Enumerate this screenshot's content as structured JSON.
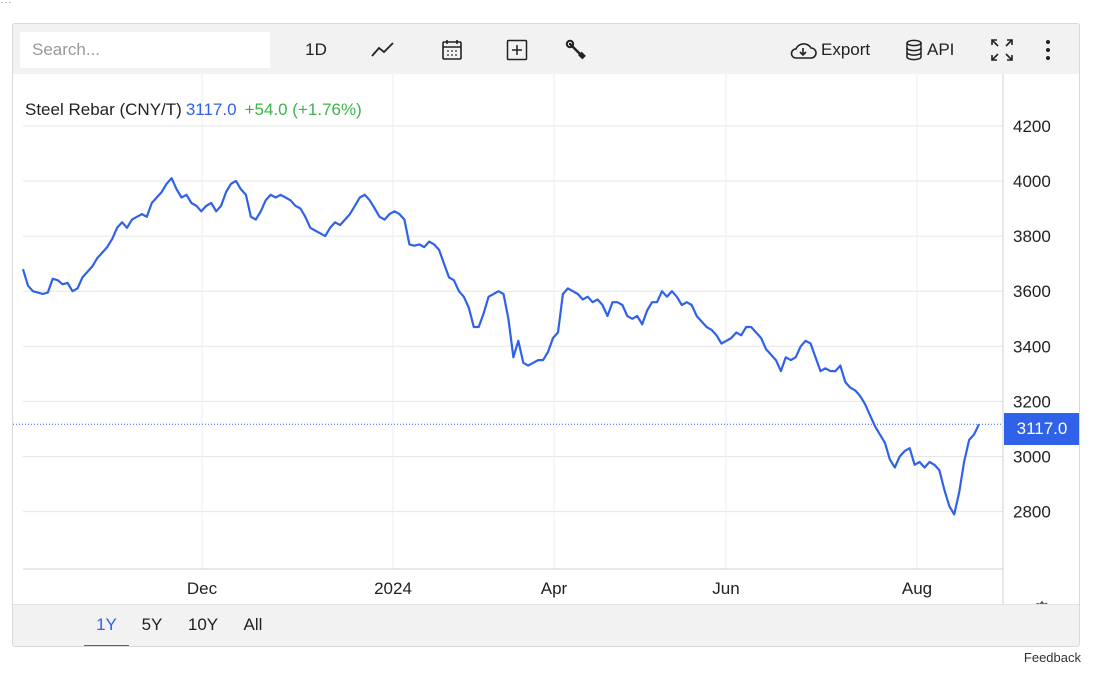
{
  "page_header_fragment": "...",
  "toolbar": {
    "search_placeholder": "Search...",
    "interval_label": "1D",
    "chart_type_icon": "line-chart-icon",
    "calendar_icon": "calendar-icon",
    "compare_icon": "plus-square-icon",
    "settings_icon": "wrench-icon",
    "export_label": "Export",
    "export_icon": "cloud-download-icon",
    "api_label": "API",
    "api_icon": "database-icon",
    "fullscreen_icon": "expand-icon",
    "more_icon": "vertical-dots-icon"
  },
  "legend": {
    "name": "Steel Rebar (CNY/T)",
    "last": "3117.0",
    "change": "+54.0 (+1.76%)"
  },
  "price_tag": "3117.0",
  "range_buttons": [
    "1Y",
    "5Y",
    "10Y",
    "All"
  ],
  "active_range": "1Y",
  "feedback_label": "Feedback",
  "colors": {
    "line": "#2f62e8",
    "change_positive": "#3bb54a",
    "toolbar_bg": "#f2f2f2",
    "grid": "#e6e6e6"
  },
  "chart_data": {
    "type": "line",
    "title": "Steel Rebar (CNY/T)",
    "xlabel": "",
    "ylabel": "",
    "ylim": [
      2600,
      4300
    ],
    "yticks": [
      4200,
      4000,
      3800,
      3600,
      3400,
      3200,
      3000,
      2800
    ],
    "xticks": [
      "Dec",
      "2024",
      "Apr",
      "Jun",
      "Aug"
    ],
    "grid": true,
    "last_value": 3117.0,
    "series": [
      {
        "name": "Steel Rebar (CNY/T)",
        "values": [
          3680,
          3620,
          3600,
          3595,
          3590,
          3595,
          3645,
          3640,
          3625,
          3630,
          3600,
          3610,
          3650,
          3670,
          3690,
          3720,
          3740,
          3760,
          3790,
          3830,
          3850,
          3830,
          3860,
          3870,
          3880,
          3870,
          3920,
          3940,
          3960,
          3990,
          4010,
          3970,
          3940,
          3950,
          3920,
          3910,
          3890,
          3910,
          3920,
          3890,
          3910,
          3960,
          3990,
          4000,
          3970,
          3950,
          3870,
          3860,
          3890,
          3930,
          3950,
          3940,
          3950,
          3940,
          3930,
          3910,
          3900,
          3870,
          3830,
          3820,
          3810,
          3800,
          3830,
          3850,
          3840,
          3860,
          3880,
          3910,
          3940,
          3950,
          3930,
          3900,
          3870,
          3860,
          3880,
          3890,
          3880,
          3860,
          3770,
          3765,
          3770,
          3760,
          3780,
          3770,
          3750,
          3700,
          3650,
          3640,
          3600,
          3580,
          3540,
          3470,
          3470,
          3520,
          3580,
          3590,
          3600,
          3590,
          3500,
          3360,
          3420,
          3340,
          3330,
          3340,
          3350,
          3350,
          3380,
          3430,
          3450,
          3590,
          3610,
          3600,
          3590,
          3570,
          3580,
          3560,
          3570,
          3550,
          3510,
          3560,
          3560,
          3550,
          3510,
          3500,
          3510,
          3480,
          3530,
          3560,
          3560,
          3600,
          3580,
          3600,
          3580,
          3550,
          3560,
          3550,
          3510,
          3490,
          3470,
          3460,
          3440,
          3410,
          3420,
          3430,
          3450,
          3440,
          3470,
          3470,
          3450,
          3430,
          3390,
          3370,
          3350,
          3310,
          3360,
          3350,
          3360,
          3400,
          3420,
          3410,
          3360,
          3310,
          3320,
          3310,
          3310,
          3330,
          3270,
          3250,
          3240,
          3220,
          3190,
          3150,
          3110,
          3080,
          3050,
          2990,
          2960,
          3000,
          3020,
          3030,
          2970,
          2980,
          2960,
          2980,
          2970,
          2950,
          2880,
          2820,
          2790,
          2870,
          2980,
          3060,
          3080,
          3117
        ]
      }
    ]
  }
}
